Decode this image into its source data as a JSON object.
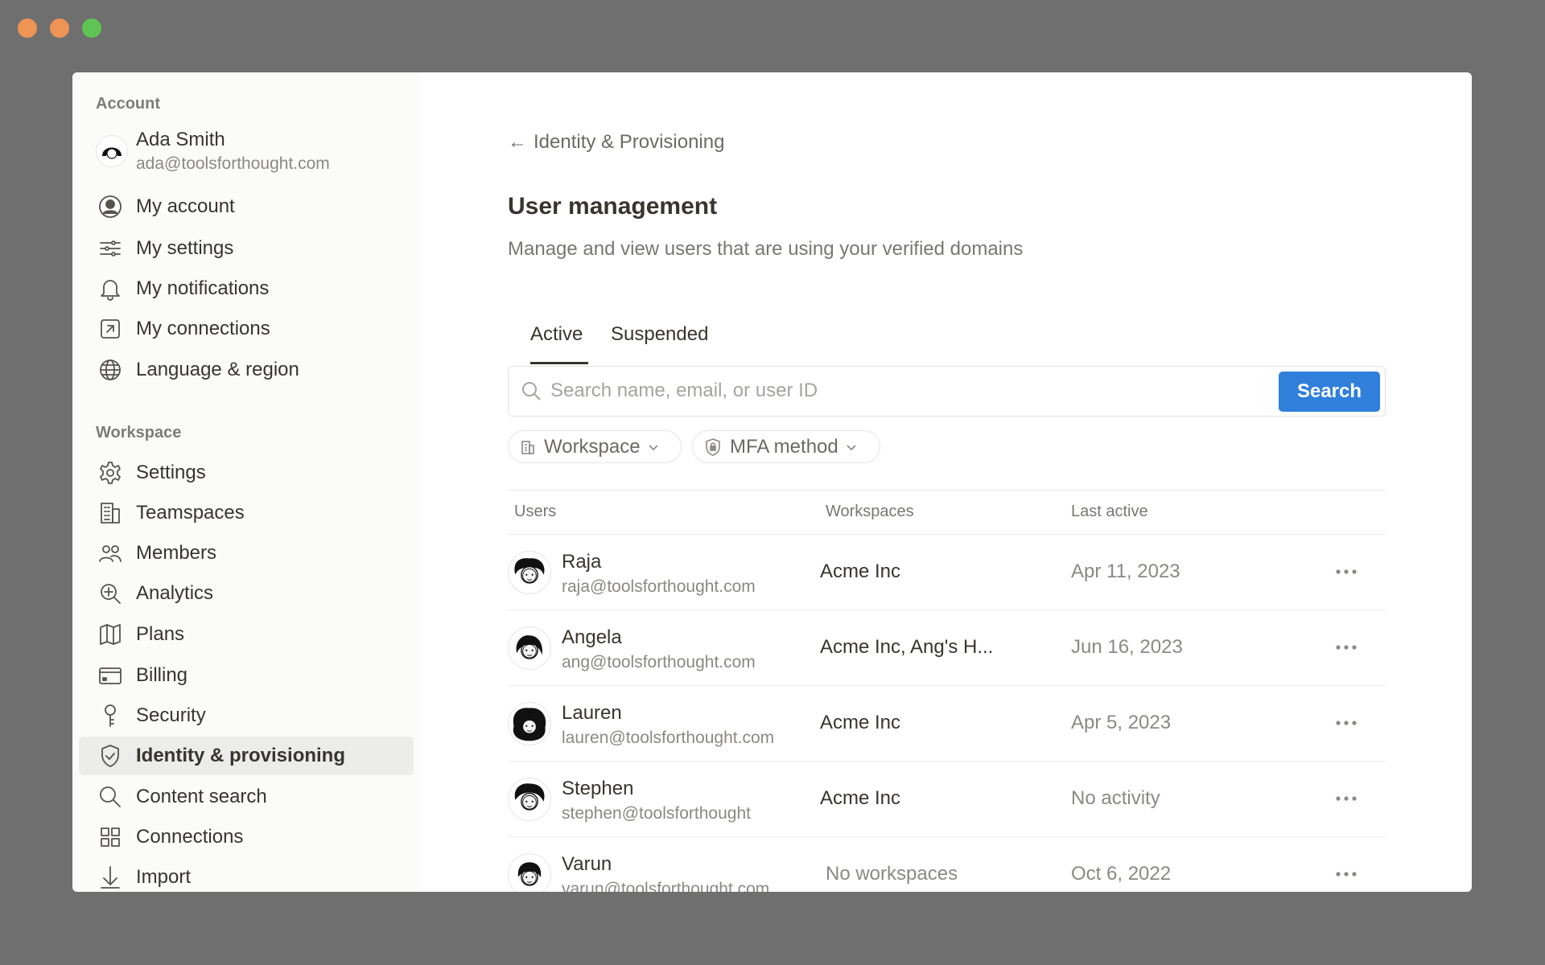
{
  "colors": {
    "accent": "#2f7fdb",
    "close": "#ee9454",
    "minimize": "#ee9454",
    "maximize": "#5fc454"
  },
  "sidebar": {
    "account_label": "Account",
    "profile": {
      "name": "Ada Smith",
      "email": "ada@toolsforthought.com"
    },
    "account_items": [
      {
        "label": "My account",
        "icon": "user-circle-icon"
      },
      {
        "label": "My settings",
        "icon": "sliders-icon"
      },
      {
        "label": "My notifications",
        "icon": "bell-icon"
      },
      {
        "label": "My connections",
        "icon": "arrow-up-right-square-icon"
      },
      {
        "label": "Language & region",
        "icon": "globe-icon"
      }
    ],
    "workspace_label": "Workspace",
    "workspace_items": [
      {
        "label": "Settings",
        "icon": "gear-icon"
      },
      {
        "label": "Teamspaces",
        "icon": "building-icon"
      },
      {
        "label": "Members",
        "icon": "people-icon"
      },
      {
        "label": "Analytics",
        "icon": "magnify-sparkle-icon"
      },
      {
        "label": "Plans",
        "icon": "map-icon"
      },
      {
        "label": "Billing",
        "icon": "credit-card-icon"
      },
      {
        "label": "Security",
        "icon": "key-icon"
      },
      {
        "label": "Identity & provisioning",
        "icon": "shield-check-icon",
        "selected": true
      },
      {
        "label": "Content search",
        "icon": "search-icon"
      },
      {
        "label": "Connections",
        "icon": "grid-icon"
      },
      {
        "label": "Import",
        "icon": "download-arrow-icon"
      }
    ]
  },
  "main": {
    "back_label": "Identity & Provisioning",
    "title": "User management",
    "subtitle": "Manage and view users that are using your verified domains",
    "tabs": [
      {
        "label": "Active",
        "active": true
      },
      {
        "label": "Suspended",
        "active": false
      }
    ],
    "search": {
      "placeholder": "Search name, email, or user ID",
      "value": "",
      "button": "Search"
    },
    "filters": [
      {
        "label": "Workspace",
        "icon": "building-icon"
      },
      {
        "label": "MFA method",
        "icon": "shield-lock-icon"
      }
    ],
    "table": {
      "columns": [
        "Users",
        "Workspaces",
        "Last active"
      ],
      "rows": [
        {
          "name": "Raja",
          "email": "raja@toolsforthought.com",
          "workspaces": "Acme Inc",
          "last_active": "Apr 11, 2023"
        },
        {
          "name": "Angela",
          "email": "ang@toolsforthought.com",
          "workspaces": "Acme Inc, Ang's H...",
          "last_active": "Jun 16, 2023"
        },
        {
          "name": "Lauren",
          "email": "lauren@toolsforthought.com",
          "workspaces": "Acme Inc",
          "last_active": "Apr 5, 2023"
        },
        {
          "name": "Stephen",
          "email": "stephen@toolsforthought",
          "workspaces": "Acme Inc",
          "last_active": "No activity"
        },
        {
          "name": "Varun",
          "email": "varun@toolsforthought.com",
          "workspaces": "No workspaces",
          "last_active": "Oct 6, 2022",
          "muted_workspace": true
        }
      ]
    }
  }
}
